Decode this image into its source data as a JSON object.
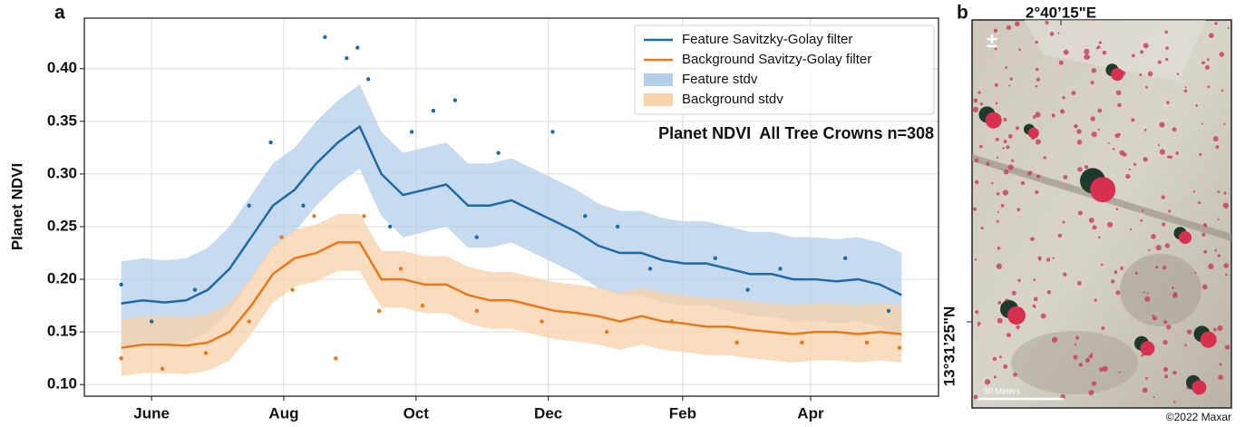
{
  "chart_data": {
    "type": "line",
    "panel_label": "a",
    "ylabel": "Planet NDVI",
    "annotation": "Planet NDVI  All Tree Crowns n=308",
    "xlim": [
      -31,
      363
    ],
    "ylim": [
      0.089,
      0.448
    ],
    "xticks": [
      {
        "value": 0,
        "label": "June"
      },
      {
        "value": 61,
        "label": "Aug"
      },
      {
        "value": 122,
        "label": "Oct"
      },
      {
        "value": 183,
        "label": "Dec"
      },
      {
        "value": 245,
        "label": "Feb"
      },
      {
        "value": 304,
        "label": "Apr"
      }
    ],
    "yticks": [
      {
        "value": 0.1,
        "label": "0.10"
      },
      0.15,
      {
        "value": 0.2,
        "label": "0.20"
      },
      0.25,
      {
        "value": 0.3,
        "label": "0.30"
      },
      0.35,
      {
        "value": 0.4,
        "label": "0.40"
      }
    ],
    "grid": true,
    "legend": "upper right",
    "x": [
      -14,
      -4,
      6,
      16,
      26,
      36,
      46,
      56,
      66,
      76,
      86,
      96,
      106,
      116,
      126,
      136,
      146,
      156,
      166,
      176,
      186,
      196,
      206,
      216,
      226,
      236,
      246,
      256,
      266,
      276,
      286,
      296,
      306,
      316,
      326,
      336,
      346
    ],
    "series": [
      {
        "name": "Feature Savitzky-Golay filter",
        "color": "#1f6aa5",
        "values": [
          0.177,
          0.18,
          0.178,
          0.18,
          0.19,
          0.21,
          0.24,
          0.27,
          0.285,
          0.31,
          0.33,
          0.345,
          0.3,
          0.28,
          0.285,
          0.29,
          0.27,
          0.27,
          0.275,
          0.265,
          0.255,
          0.245,
          0.232,
          0.225,
          0.225,
          0.218,
          0.215,
          0.215,
          0.21,
          0.205,
          0.205,
          0.2,
          0.2,
          0.198,
          0.2,
          0.195,
          0.185
        ]
      },
      {
        "name": "Background Savitzy-Golay filter",
        "color": "#e8781c",
        "values": [
          0.135,
          0.138,
          0.138,
          0.137,
          0.14,
          0.15,
          0.175,
          0.205,
          0.22,
          0.225,
          0.235,
          0.235,
          0.2,
          0.2,
          0.195,
          0.195,
          0.185,
          0.18,
          0.18,
          0.175,
          0.17,
          0.168,
          0.165,
          0.16,
          0.165,
          0.16,
          0.158,
          0.155,
          0.155,
          0.152,
          0.15,
          0.148,
          0.15,
          0.15,
          0.148,
          0.15,
          0.148
        ]
      },
      {
        "name": "Feature stdv",
        "color": "#b3cfea",
        "upper": [
          0.217,
          0.22,
          0.218,
          0.22,
          0.23,
          0.25,
          0.28,
          0.31,
          0.325,
          0.35,
          0.37,
          0.385,
          0.34,
          0.32,
          0.325,
          0.33,
          0.31,
          0.31,
          0.315,
          0.305,
          0.295,
          0.285,
          0.272,
          0.265,
          0.265,
          0.258,
          0.255,
          0.255,
          0.25,
          0.245,
          0.245,
          0.24,
          0.24,
          0.238,
          0.24,
          0.235,
          0.225
        ],
        "lower": [
          0.137,
          0.14,
          0.138,
          0.14,
          0.15,
          0.17,
          0.2,
          0.23,
          0.245,
          0.27,
          0.29,
          0.305,
          0.26,
          0.24,
          0.245,
          0.25,
          0.23,
          0.23,
          0.235,
          0.225,
          0.215,
          0.205,
          0.192,
          0.185,
          0.185,
          0.178,
          0.175,
          0.175,
          0.17,
          0.165,
          0.165,
          0.16,
          0.16,
          0.158,
          0.16,
          0.155,
          0.145
        ]
      },
      {
        "name": "Background stdv",
        "color": "#f8d2aa",
        "upper": [
          0.162,
          0.165,
          0.165,
          0.164,
          0.167,
          0.177,
          0.202,
          0.232,
          0.247,
          0.252,
          0.262,
          0.262,
          0.227,
          0.227,
          0.222,
          0.222,
          0.212,
          0.207,
          0.207,
          0.202,
          0.197,
          0.195,
          0.192,
          0.187,
          0.192,
          0.187,
          0.185,
          0.182,
          0.182,
          0.179,
          0.177,
          0.175,
          0.177,
          0.177,
          0.175,
          0.177,
          0.175
        ],
        "lower": [
          0.108,
          0.111,
          0.111,
          0.11,
          0.113,
          0.123,
          0.148,
          0.178,
          0.193,
          0.198,
          0.208,
          0.208,
          0.173,
          0.173,
          0.168,
          0.168,
          0.158,
          0.153,
          0.153,
          0.148,
          0.143,
          0.141,
          0.138,
          0.133,
          0.138,
          0.133,
          0.131,
          0.128,
          0.128,
          0.125,
          0.123,
          0.121,
          0.123,
          0.123,
          0.121,
          0.123,
          0.121
        ]
      }
    ],
    "scatter": [
      {
        "color": "#1f6aa5",
        "x": [
          -14,
          0,
          20,
          45,
          55,
          70,
          80,
          90,
          95,
          100,
          110,
          120,
          130,
          140,
          150,
          160,
          185,
          200,
          215,
          230,
          260,
          275,
          290,
          320,
          340
        ],
        "y": [
          0.195,
          0.16,
          0.19,
          0.27,
          0.33,
          0.27,
          0.43,
          0.41,
          0.42,
          0.39,
          0.25,
          0.34,
          0.36,
          0.37,
          0.24,
          0.32,
          0.34,
          0.26,
          0.25,
          0.21,
          0.22,
          0.19,
          0.21,
          0.22,
          0.17
        ]
      },
      {
        "color": "#e8781c",
        "x": [
          -14,
          5,
          25,
          45,
          60,
          65,
          75,
          85,
          98,
          105,
          115,
          125,
          150,
          180,
          210,
          240,
          270,
          300,
          330,
          345
        ],
        "y": [
          0.125,
          0.115,
          0.13,
          0.16,
          0.24,
          0.19,
          0.26,
          0.125,
          0.26,
          0.17,
          0.21,
          0.175,
          0.17,
          0.16,
          0.15,
          0.16,
          0.14,
          0.14,
          0.14,
          0.135
        ]
      }
    ]
  },
  "map_panel": {
    "panel_label": "b",
    "longitude": "2°40’15\"E",
    "latitude": "13°31’25\"N",
    "scale_bar": "50 Meters",
    "credit": "©2022 Maxar"
  }
}
